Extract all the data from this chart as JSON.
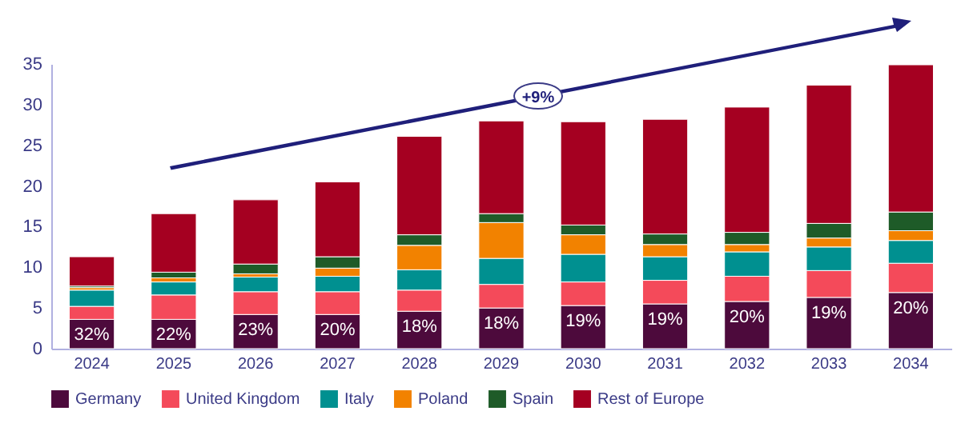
{
  "chart_data": {
    "type": "bar",
    "stacked": true,
    "categories": [
      "2024",
      "2025",
      "2026",
      "2027",
      "2028",
      "2029",
      "2030",
      "2031",
      "2032",
      "2033",
      "2034"
    ],
    "series": [
      {
        "name": "Germany",
        "color": "#4d0a3c",
        "values": [
          3.6,
          3.6,
          4.2,
          4.2,
          4.6,
          5.0,
          5.3,
          5.5,
          5.8,
          6.3,
          6.9
        ]
      },
      {
        "name": "United Kingdom",
        "color": "#f44a5a",
        "values": [
          1.6,
          3.0,
          2.8,
          2.8,
          2.6,
          2.9,
          2.9,
          2.9,
          3.1,
          3.3,
          3.6
        ]
      },
      {
        "name": "Italy",
        "color": "#009090",
        "values": [
          2.0,
          1.6,
          1.8,
          1.9,
          2.5,
          3.2,
          3.4,
          2.9,
          3.0,
          2.9,
          2.8
        ]
      },
      {
        "name": "Poland",
        "color": "#f28200",
        "values": [
          0.3,
          0.5,
          0.4,
          1.0,
          3.0,
          4.4,
          2.4,
          1.5,
          0.9,
          1.1,
          1.2
        ]
      },
      {
        "name": "Spain",
        "color": "#1e5b28",
        "values": [
          0.2,
          0.7,
          1.2,
          1.4,
          1.3,
          1.1,
          1.2,
          1.3,
          1.5,
          1.8,
          2.3
        ]
      },
      {
        "name": "Rest of Europe",
        "color": "#a50021",
        "values": [
          3.6,
          7.2,
          7.9,
          9.2,
          12.1,
          11.4,
          12.7,
          14.1,
          15.4,
          17.0,
          18.1
        ]
      }
    ],
    "ylim": [
      0,
      35
    ],
    "yticks": [
      0,
      5,
      10,
      15,
      20,
      25,
      30,
      35
    ],
    "grid": false,
    "legend": "bottom",
    "annotations": [
      "+9%",
      {
        "text": "32%",
        "x": "2024",
        "y": 3.6
      },
      {
        "text": "22%",
        "x": "2025",
        "y": 3.6
      },
      {
        "text": "23%",
        "x": "2026",
        "y": 4.2
      },
      {
        "text": "20%",
        "x": "2027",
        "y": 4.2
      },
      {
        "text": "18%",
        "x": "2028",
        "y": 4.6
      },
      {
        "text": "18%",
        "x": "2029",
        "y": 5.0
      },
      {
        "text": "19%",
        "x": "2030",
        "y": 5.3
      },
      {
        "text": "19%",
        "x": "2031",
        "y": 5.5
      },
      {
        "text": "20%",
        "x": "2032",
        "y": 5.8
      },
      {
        "text": "19%",
        "x": "2033",
        "y": 6.3
      },
      {
        "text": "20%",
        "x": "2034",
        "y": 6.9
      }
    ]
  }
}
